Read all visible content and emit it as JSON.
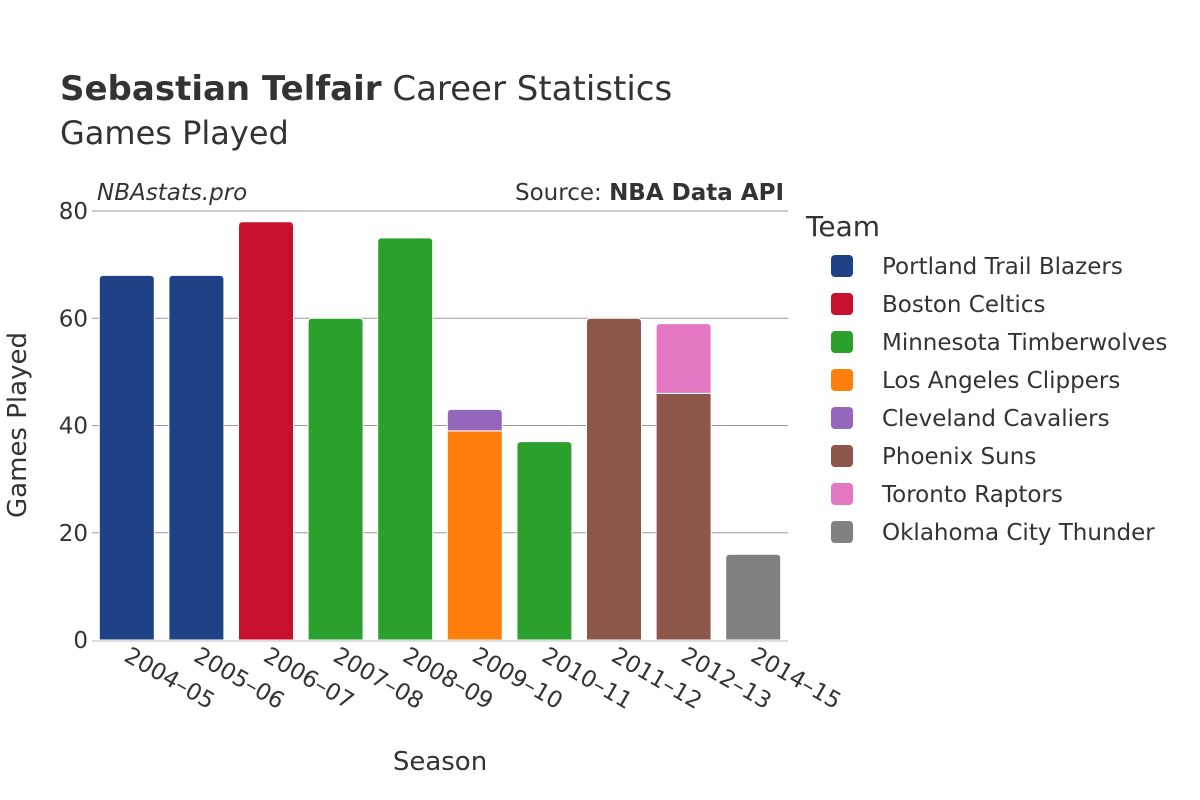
{
  "header": {
    "player_name": "Sebastian Telfair",
    "title_rest": " Career Statistics",
    "subtitle": "Games Played"
  },
  "watermark": "NBAstats.pro",
  "source": {
    "prefix": "Source: ",
    "name": "NBA Data API"
  },
  "legend_title": "Team",
  "colors": {
    "Portland Trail Blazers": "#1f4287",
    "Boston Celtics": "#c8102e",
    "Minnesota Timberwolves": "#2ca02c",
    "Los Angeles Clippers": "#ff7f0e",
    "Cleveland Cavaliers": "#9467bd",
    "Phoenix Suns": "#8c564b",
    "Toronto Raptors": "#e377c2",
    "Oklahoma City Thunder": "#808080"
  },
  "chart_data": {
    "type": "bar",
    "stacked": true,
    "xlabel": "Season",
    "ylabel": "Games Played",
    "ylim": [
      0,
      80
    ],
    "yticks": [
      0,
      20,
      40,
      60,
      80
    ],
    "grid": true,
    "legend_position": "right",
    "categories": [
      "2004–05",
      "2005–06",
      "2006–07",
      "2007–08",
      "2008–09",
      "2009–10",
      "2010–11",
      "2011–12",
      "2012–13",
      "2014–15"
    ],
    "series": [
      {
        "name": "Portland Trail Blazers",
        "values": [
          68,
          68,
          0,
          0,
          0,
          0,
          0,
          0,
          0,
          0
        ]
      },
      {
        "name": "Boston Celtics",
        "values": [
          0,
          0,
          78,
          0,
          0,
          0,
          0,
          0,
          0,
          0
        ]
      },
      {
        "name": "Minnesota Timberwolves",
        "values": [
          0,
          0,
          0,
          60,
          75,
          0,
          37,
          0,
          0,
          0
        ]
      },
      {
        "name": "Los Angeles Clippers",
        "values": [
          0,
          0,
          0,
          0,
          0,
          39,
          0,
          0,
          0,
          0
        ]
      },
      {
        "name": "Cleveland Cavaliers",
        "values": [
          0,
          0,
          0,
          0,
          0,
          4,
          0,
          0,
          0,
          0
        ]
      },
      {
        "name": "Phoenix Suns",
        "values": [
          0,
          0,
          0,
          0,
          0,
          0,
          0,
          60,
          46,
          0
        ]
      },
      {
        "name": "Toronto Raptors",
        "values": [
          0,
          0,
          0,
          0,
          0,
          0,
          0,
          0,
          13,
          0
        ]
      },
      {
        "name": "Oklahoma City Thunder",
        "values": [
          0,
          0,
          0,
          0,
          0,
          0,
          0,
          0,
          0,
          16
        ]
      }
    ]
  }
}
